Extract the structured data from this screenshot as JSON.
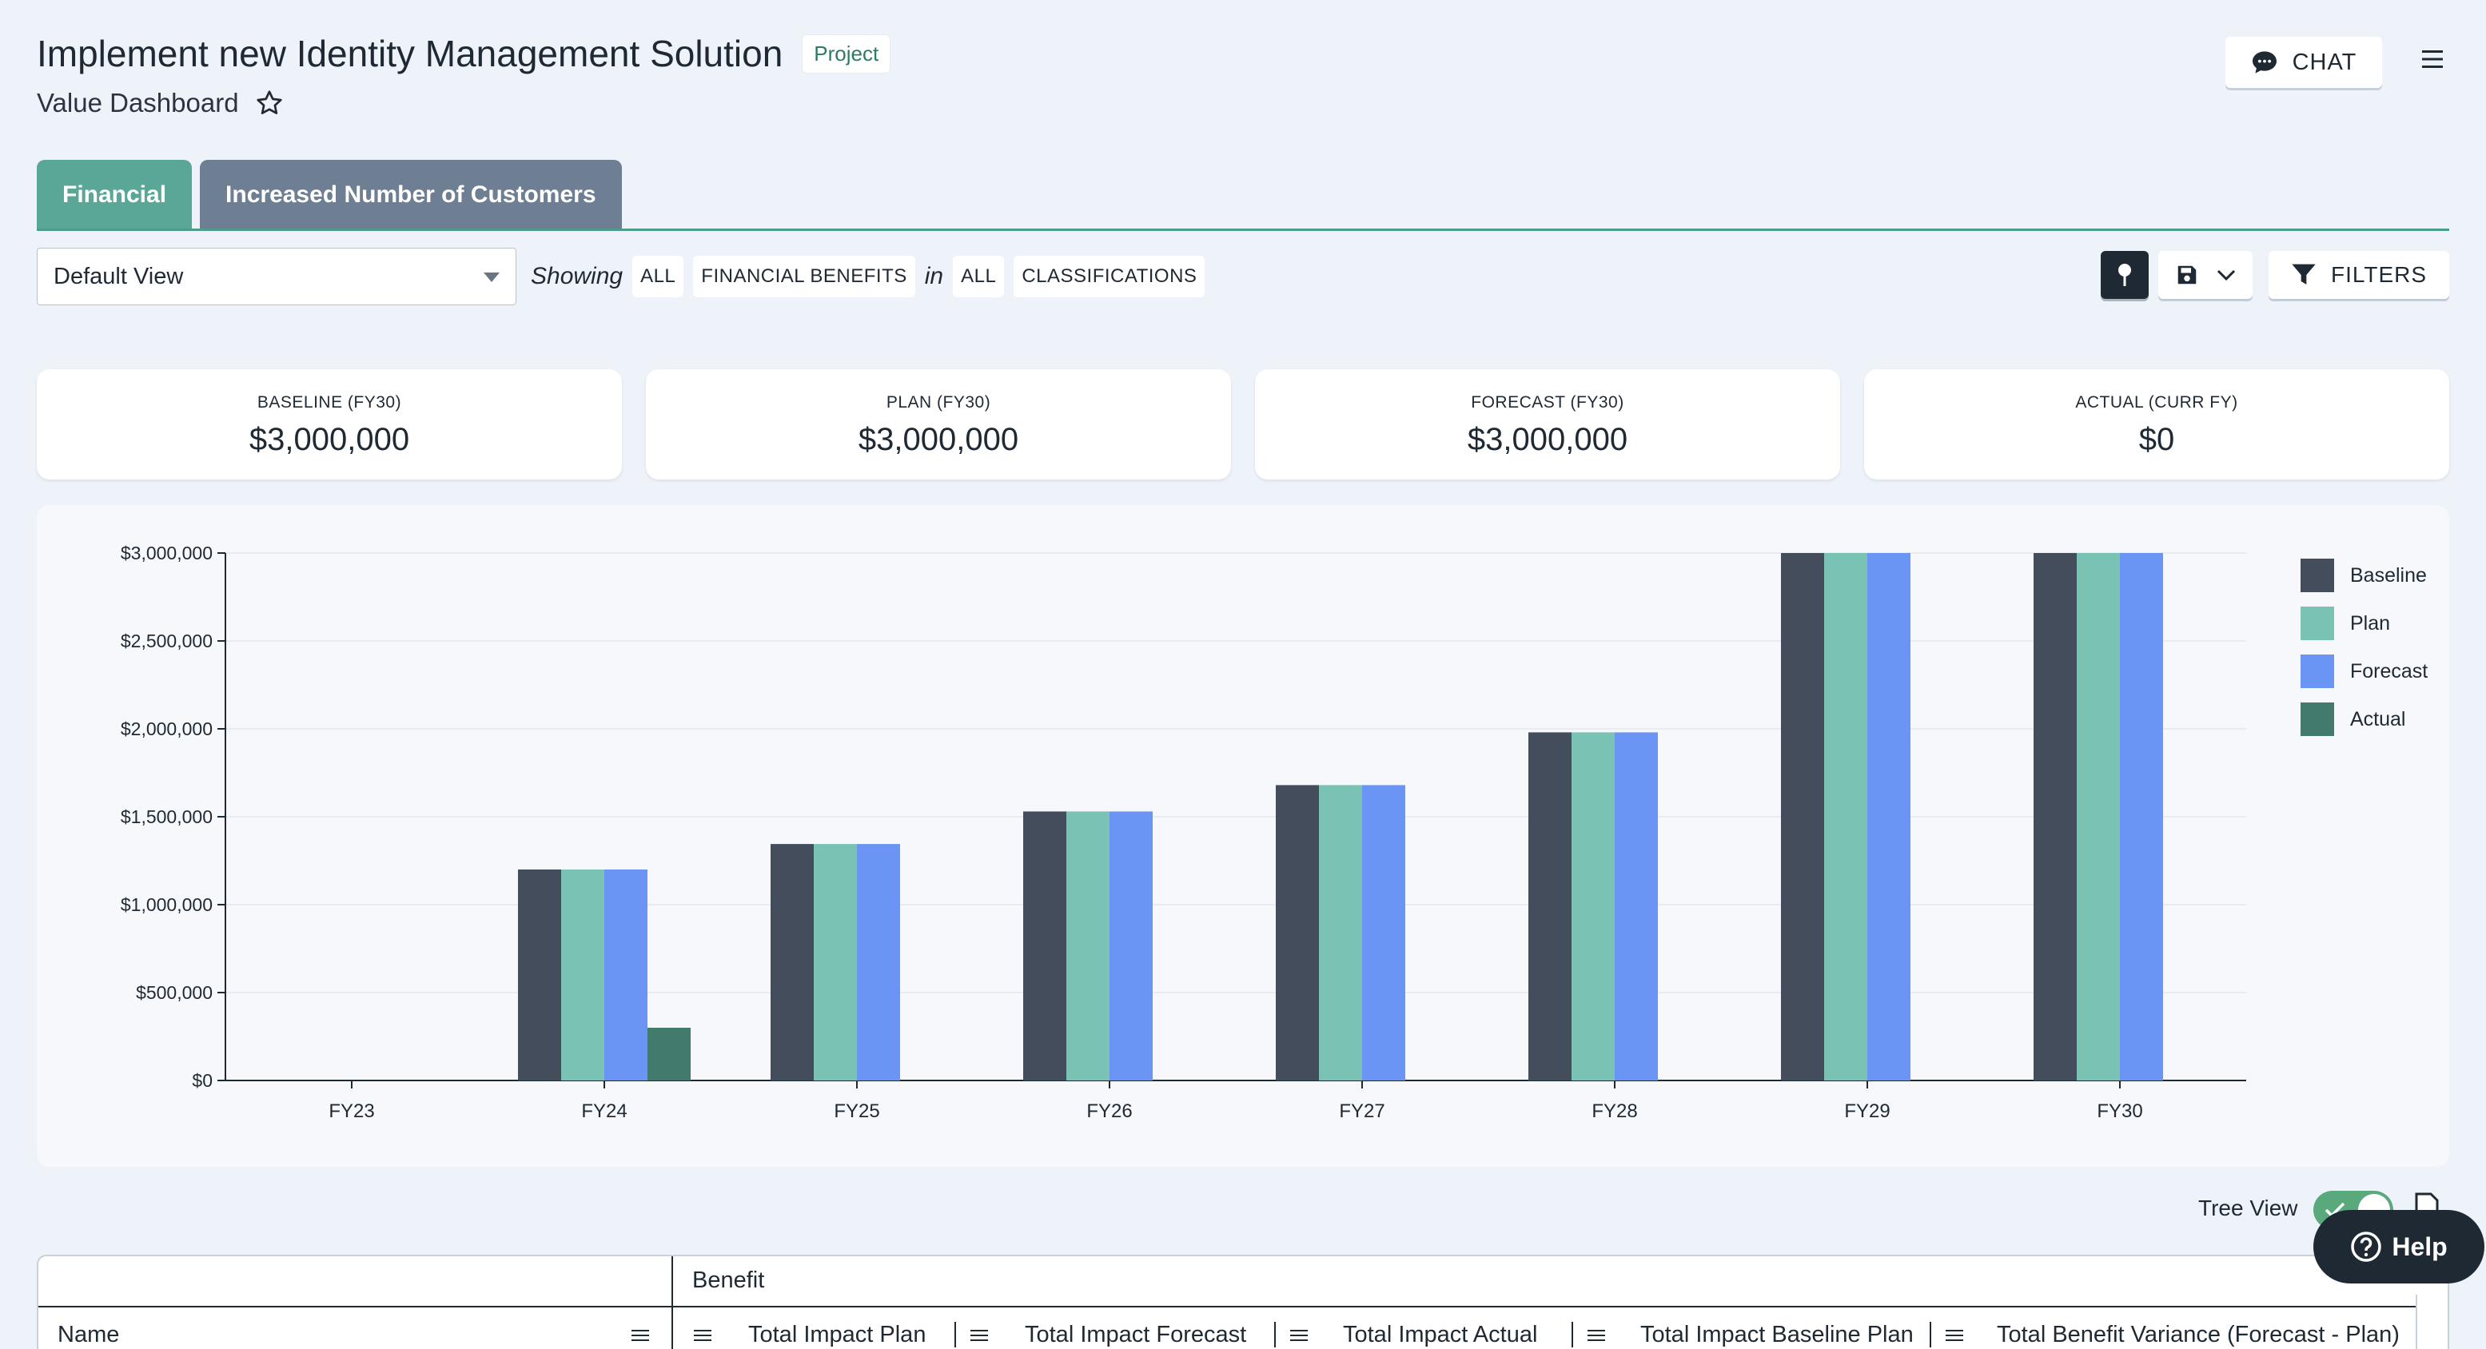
{
  "header": {
    "title": "Implement new Identity Management Solution",
    "badge": "Project",
    "subtitle": "Value Dashboard",
    "chat_label": "CHAT"
  },
  "tabs": [
    {
      "label": "Financial",
      "active": true
    },
    {
      "label": "Increased Number of Customers",
      "active": false
    }
  ],
  "filter_bar": {
    "view_value": "Default View",
    "showing_word": "Showing",
    "in_word": "in",
    "chips": [
      "ALL",
      "FINANCIAL BENEFITS",
      "ALL",
      "CLASSIFICATIONS"
    ],
    "filters_label": "FILTERS"
  },
  "kpis": [
    {
      "label": "BASELINE (FY30)",
      "value": "$3,000,000"
    },
    {
      "label": "PLAN (FY30)",
      "value": "$3,000,000"
    },
    {
      "label": "FORECAST (FY30)",
      "value": "$3,000,000"
    },
    {
      "label": "ACTUAL (CURR FY)",
      "value": "$0"
    }
  ],
  "colors": {
    "baseline": "#434d5c",
    "plan": "#79c2b4",
    "forecast": "#6b95f5",
    "actual": "#427a6e",
    "accent": "#5aa797"
  },
  "chart_data": {
    "type": "bar",
    "categories": [
      "FY23",
      "FY24",
      "FY25",
      "FY26",
      "FY27",
      "FY28",
      "FY29",
      "FY30"
    ],
    "series": [
      {
        "name": "Baseline",
        "values": [
          0,
          1200000,
          1345000,
          1530000,
          1680000,
          1980000,
          3000000,
          3000000
        ]
      },
      {
        "name": "Plan",
        "values": [
          0,
          1200000,
          1345000,
          1530000,
          1680000,
          1980000,
          3000000,
          3000000
        ]
      },
      {
        "name": "Forecast",
        "values": [
          0,
          1200000,
          1345000,
          1530000,
          1680000,
          1980000,
          3000000,
          3000000
        ]
      },
      {
        "name": "Actual",
        "values": [
          0,
          300000,
          0,
          0,
          0,
          0,
          0,
          0
        ]
      }
    ],
    "y_ticks": [
      "$0",
      "$500,000",
      "$1,000,000",
      "$1,500,000",
      "$2,000,000",
      "$2,500,000",
      "$3,000,000"
    ],
    "ylim": [
      0,
      3000000
    ],
    "grid": true,
    "legend": "right"
  },
  "bottom": {
    "tree_view_label": "Tree View",
    "help_label": "Help"
  },
  "grid": {
    "group_label": "Benefit",
    "name_header": "Name",
    "columns": [
      "Total Impact Plan",
      "Total Impact Forecast",
      "Total Impact Actual",
      "Total Impact Baseline Plan",
      "Total Benefit Variance (Forecast - Plan)"
    ]
  }
}
